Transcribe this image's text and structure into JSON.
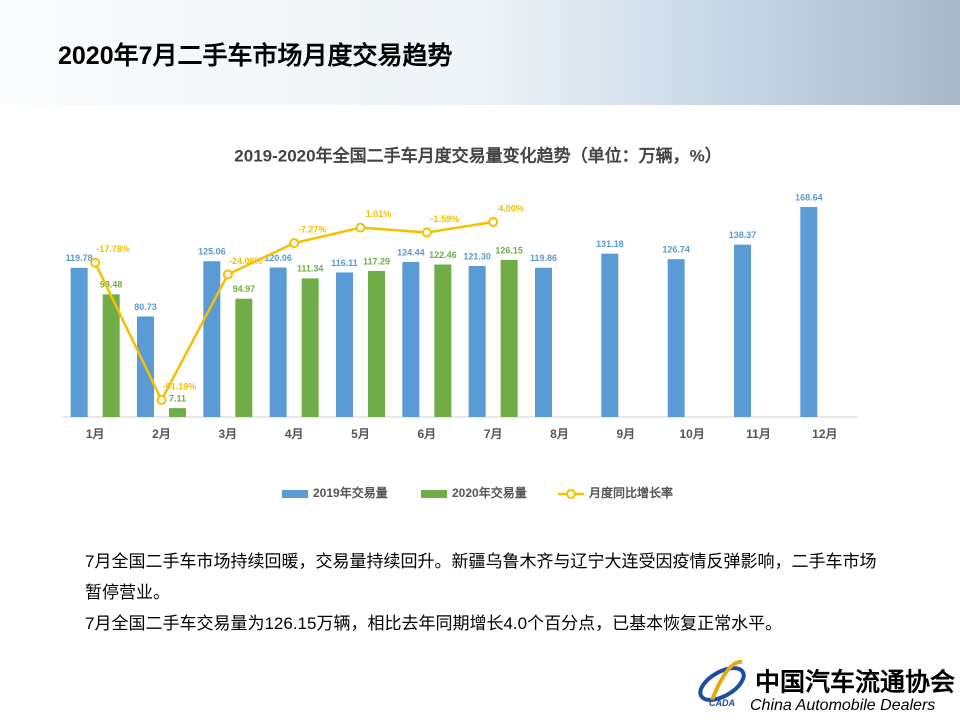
{
  "header": {
    "title": "2020年7月二手车市场月度交易趋势"
  },
  "chart_data": {
    "type": "bar",
    "title": "2019-2020年全国二手车月度交易量变化趋势（单位：万辆，%）",
    "categories": [
      "1月",
      "2月",
      "3月",
      "4月",
      "5月",
      "6月",
      "7月",
      "8月",
      "9月",
      "10月",
      "11月",
      "12月"
    ],
    "series": [
      {
        "name": "2019年交易量",
        "color": "#5b9bd5",
        "values": [
          119.78,
          80.73,
          125.06,
          120.06,
          116.11,
          124.44,
          121.3,
          119.86,
          131.18,
          126.74,
          138.37,
          168.64
        ],
        "value_labels": [
          "119.78",
          "80.73",
          "125.06",
          "120.06",
          "116.11",
          "124.44",
          "121.30",
          "119.86",
          "131.18",
          "126.74",
          "138.37",
          "168.64"
        ]
      },
      {
        "name": "2020年交易量",
        "color": "#70ad47",
        "values": [
          98.48,
          7.11,
          94.97,
          111.34,
          117.29,
          122.46,
          126.15,
          null,
          null,
          null,
          null,
          null
        ],
        "value_labels": [
          "98.48",
          "7.11",
          "94.97",
          "111.34",
          "117.29",
          "122.46",
          "126.15",
          null,
          null,
          null,
          null,
          null
        ]
      },
      {
        "name": "月度同比增长率",
        "color": "#f5c000",
        "type": "line",
        "axis": "y2",
        "values": [
          -17.78,
          -91.19,
          -24.06,
          -7.27,
          1.01,
          -1.59,
          4.0,
          null,
          null,
          null,
          null,
          null
        ],
        "value_labels": [
          "-17.78%",
          "-91.19%",
          "-24.06%",
          "-7.27%",
          "1.01%",
          "-1.59%",
          "4.00%",
          null,
          null,
          null,
          null,
          null
        ]
      }
    ],
    "legend": "bottom"
  },
  "text": {
    "paragraphs": [
      "7月全国二手车市场持续回暖，交易量持续回升。新疆乌鲁木齐与辽宁大连受因疫情反弹影响，二手车市场暂停营业。",
      "7月全国二手车交易量为126.15万辆，相比去年同期增长4.0个百分点，已基本恢复正常水平。"
    ]
  },
  "logo": {
    "name": "中国汽车流通协会",
    "english": "China Automobile Dealers",
    "abbr": "CADA"
  }
}
